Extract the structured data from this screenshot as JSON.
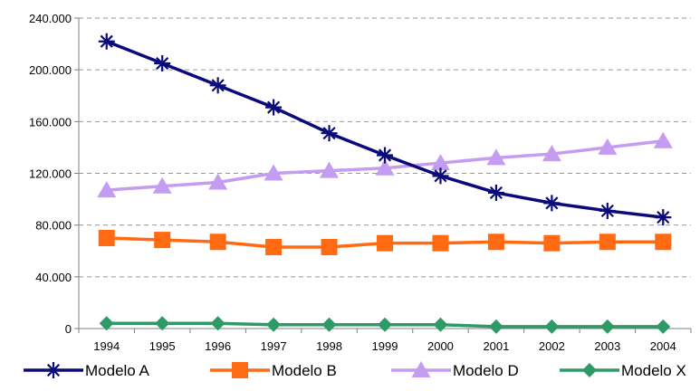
{
  "chart_data": {
    "type": "line",
    "x": [
      "1994",
      "1995",
      "1996",
      "1997",
      "1998",
      "1999",
      "2000",
      "2001",
      "2002",
      "2003",
      "2004"
    ],
    "y_ticks": [
      "0",
      "40.000",
      "80.000",
      "120.000",
      "160.000",
      "200.000",
      "240.000"
    ],
    "ylim": [
      0,
      240000
    ],
    "grid": "horizontal-dashed",
    "legend_position": "bottom",
    "series": [
      {
        "name": "Modelo A",
        "color": "#0a0a7a",
        "marker": "asterisk",
        "values": [
          222000,
          205000,
          188000,
          171000,
          151000,
          134000,
          118000,
          105000,
          97000,
          91000,
          86000
        ]
      },
      {
        "name": "Modelo B",
        "color": "#ff6a13",
        "marker": "square",
        "values": [
          70000,
          68500,
          67000,
          63000,
          63000,
          66000,
          66000,
          67000,
          66000,
          67000,
          67000
        ]
      },
      {
        "name": "Modelo D",
        "color": "#c49cf2",
        "marker": "triangle",
        "values": [
          107000,
          110000,
          113000,
          120000,
          122000,
          124000,
          128000,
          132000,
          135000,
          140000,
          145000
        ]
      },
      {
        "name": "Modelo X",
        "color": "#2e9a66",
        "marker": "diamond",
        "values": [
          4000,
          4000,
          4000,
          3000,
          3000,
          3000,
          3000,
          1500,
          1500,
          1500,
          1500
        ]
      }
    ]
  }
}
